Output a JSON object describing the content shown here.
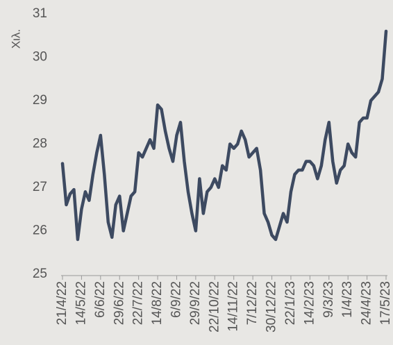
{
  "chart_data": {
    "type": "line",
    "y_label": "Χιλ.",
    "categories": [
      "21/4/22",
      null,
      null,
      null,
      null,
      "14/5/22",
      null,
      null,
      null,
      null,
      "6/6/22",
      null,
      null,
      null,
      null,
      "29/6/22",
      null,
      null,
      null,
      null,
      "22/7/22",
      null,
      null,
      null,
      null,
      "14/8/22",
      null,
      null,
      null,
      null,
      "6/9/22",
      null,
      null,
      null,
      null,
      "29/9/22",
      null,
      null,
      null,
      null,
      "22/10/22",
      null,
      null,
      null,
      null,
      "14/11/22",
      null,
      null,
      null,
      null,
      "7/12/22",
      null,
      null,
      null,
      null,
      "30/12/22",
      null,
      null,
      null,
      null,
      "22/1/23",
      null,
      null,
      null,
      null,
      "14/2/23",
      null,
      null,
      null,
      null,
      "9/3/23",
      null,
      null,
      null,
      null,
      "1/4/23",
      null,
      null,
      null,
      null,
      "24/4/23",
      null,
      null,
      null,
      null,
      "17/5/23"
    ],
    "series": [
      {
        "color": "#3d4a61",
        "values": [
          27.55,
          26.6,
          26.85,
          26.95,
          25.8,
          26.5,
          26.9,
          26.7,
          27.3,
          27.8,
          28.2,
          27.3,
          26.2,
          25.85,
          26.6,
          26.8,
          26.0,
          26.4,
          26.8,
          26.9,
          27.8,
          27.7,
          27.9,
          28.1,
          27.9,
          28.9,
          28.8,
          28.3,
          27.9,
          27.6,
          28.2,
          28.5,
          27.6,
          26.9,
          26.4,
          26.0,
          27.2,
          26.4,
          26.9,
          27.0,
          27.2,
          27.0,
          27.5,
          27.4,
          28.0,
          27.9,
          28.0,
          28.3,
          28.1,
          27.7,
          27.8,
          27.9,
          27.4,
          26.4,
          26.2,
          25.9,
          25.8,
          26.1,
          26.4,
          26.2,
          26.9,
          27.3,
          27.4,
          27.4,
          27.6,
          27.6,
          27.5,
          27.2,
          27.5,
          28.1,
          28.5,
          27.6,
          27.1,
          27.4,
          27.5,
          28.0,
          27.8,
          27.7,
          28.5,
          28.6,
          28.6,
          29.0,
          29.1,
          29.2,
          29.5,
          30.6
        ]
      }
    ],
    "ylim": [
      25,
      31
    ],
    "yticks": [
      25,
      26,
      27,
      28,
      29,
      30,
      31
    ],
    "grid": false
  }
}
